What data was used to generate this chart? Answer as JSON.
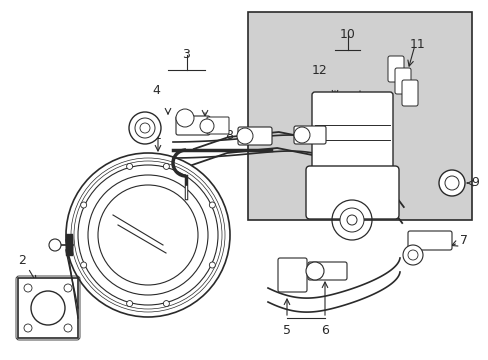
{
  "background_color": "#ffffff",
  "line_color": "#2a2a2a",
  "shaded_color": "#d0d0d0",
  "fig_w": 4.89,
  "fig_h": 3.6,
  "dpi": 100,
  "xlim": [
    0,
    489
  ],
  "ylim": [
    0,
    360
  ]
}
